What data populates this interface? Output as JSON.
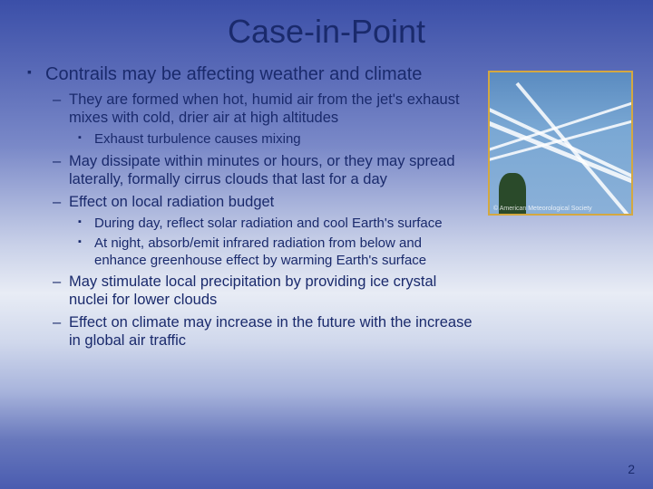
{
  "title": "Case-in-Point",
  "bullets": {
    "main": "Contrails may be affecting weather and climate",
    "sub1": "They are formed when hot, humid air from the jet's exhaust mixes with cold, drier air at high altitudes",
    "sub1a": "Exhaust turbulence causes mixing",
    "sub2": "May dissipate within minutes or hours, or they may spread laterally, formally cirrus clouds that last for a day",
    "sub3": "Effect on local radiation budget",
    "sub3a": "During day, reflect solar radiation and cool Earth's surface",
    "sub3b": "At night, absorb/emit infrared radiation from below and enhance greenhouse effect by warming Earth's surface",
    "sub4": "May stimulate local precipitation by providing ice crystal nuclei for lower clouds",
    "sub5": "Effect on climate may increase in the future with the increase in global air traffic"
  },
  "image_credit": "© American Meteorological Society",
  "page_number": "2",
  "colors": {
    "text": "#1a2a6c",
    "image_border": "#d4a840"
  }
}
